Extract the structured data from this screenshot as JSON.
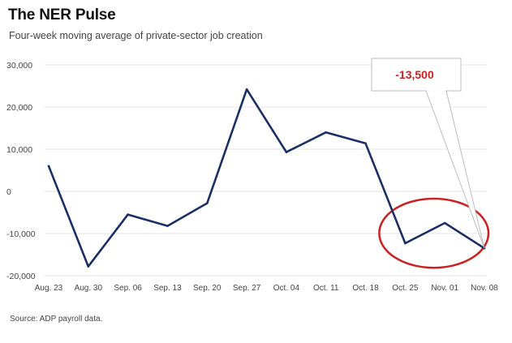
{
  "header": {
    "title": "The NER Pulse",
    "subtitle": "Four-week moving average of private-sector job creation"
  },
  "footer": {
    "source": "Source: ADP payroll data."
  },
  "chart_data": {
    "type": "line",
    "title": "The NER Pulse",
    "subtitle": "Four-week moving average of private-sector job creation",
    "xlabel": "",
    "ylabel": "",
    "categories": [
      "Aug. 23",
      "Aug. 30",
      "Sep. 06",
      "Sep. 13",
      "Sep. 20",
      "Sep. 27",
      "Oct. 04",
      "Oct. 11",
      "Oct. 18",
      "Oct. 25",
      "Nov. 01",
      "Nov. 08"
    ],
    "series": [
      {
        "values": [
          6000,
          -17800,
          -5500,
          -8200,
          -2800,
          24200,
          9300,
          14000,
          11400,
          -12300,
          -7500,
          -13500
        ]
      }
    ],
    "ylim": [
      -20000,
      30000
    ],
    "yticks": [
      30000,
      20000,
      10000,
      0,
      -10000,
      -20000
    ],
    "ytick_labels": [
      "30,000",
      "20,000",
      "10,000",
      "0",
      "-10,000",
      "-20,000"
    ],
    "grid": true,
    "line_color": "#1b2f66",
    "annotation": {
      "text": "-13,500",
      "target_category": "Nov. 08",
      "color": "#cc1f1f",
      "highlight_from": "Oct. 25",
      "highlight_to": "Nov. 08"
    }
  }
}
